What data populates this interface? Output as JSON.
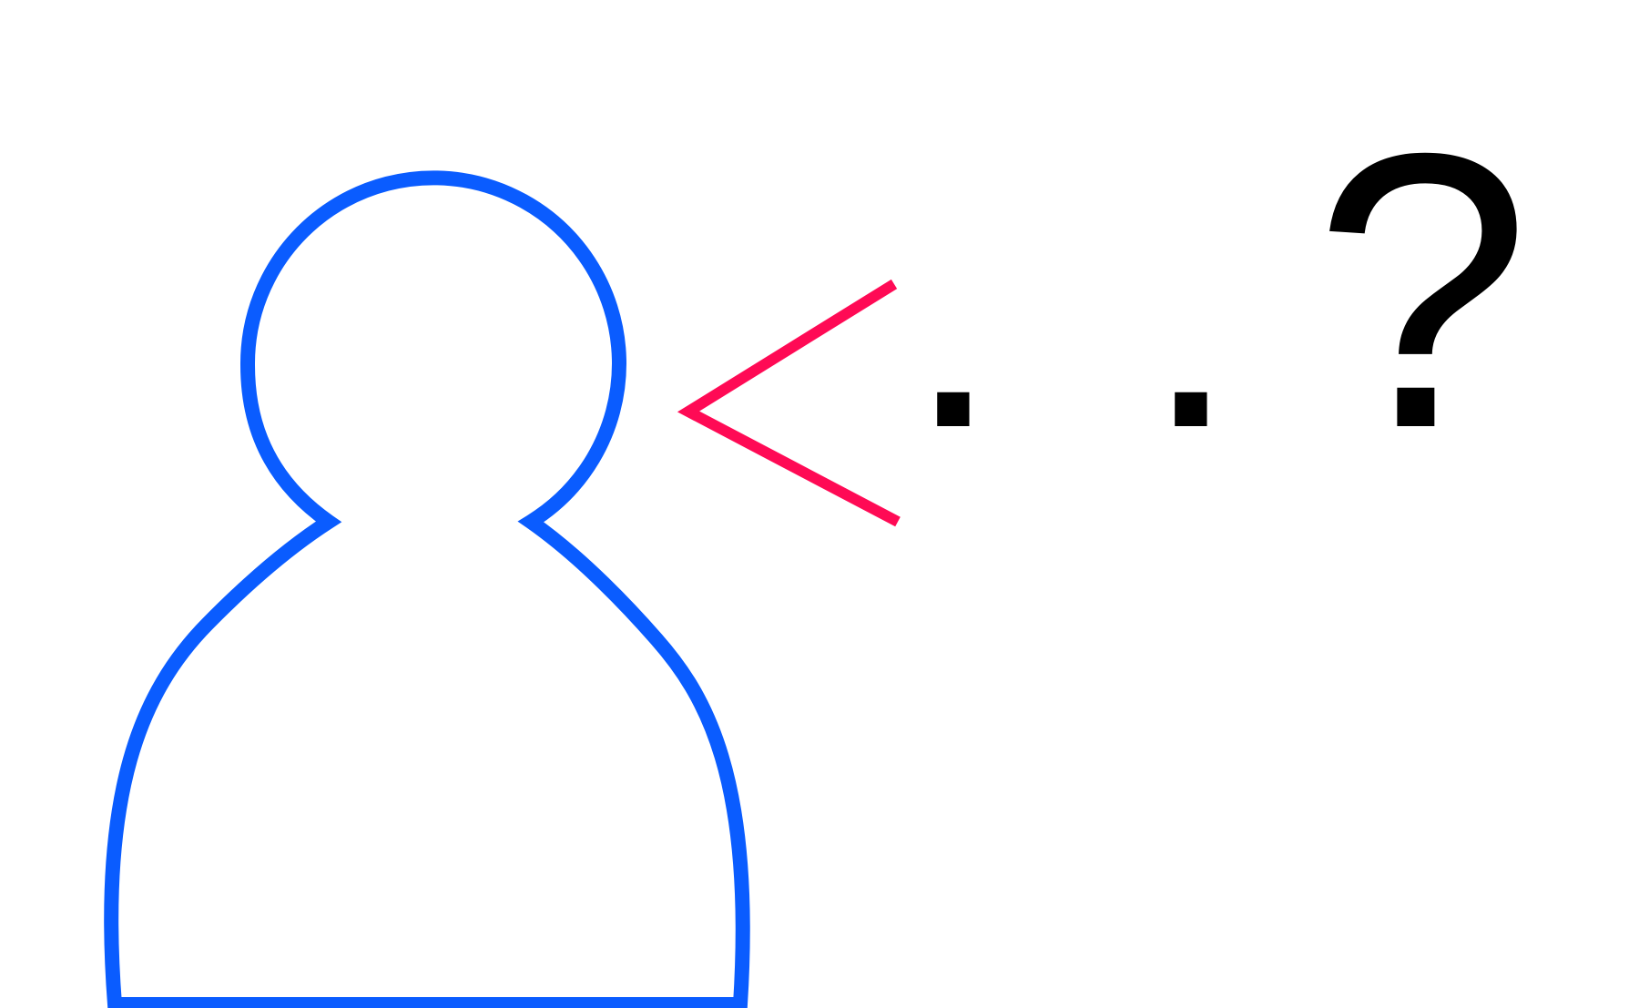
{
  "figure": {
    "icon": "person-outline-icon",
    "speech_mark": "less-than-speech-icon",
    "text": {
      "dot_1": ".",
      "dot_2": ".",
      "question": "?"
    }
  },
  "colors": {
    "person_stroke": "#0A5CFF",
    "speech_stroke": "#FF0A55",
    "text": "#000000",
    "background": "#FFFFFF"
  }
}
